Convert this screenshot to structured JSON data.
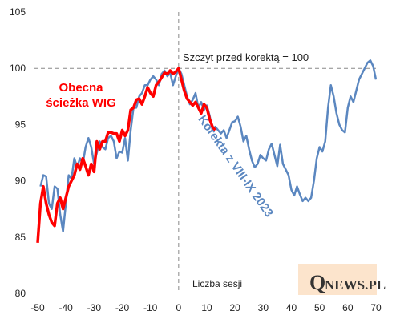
{
  "chart_data": {
    "type": "line",
    "annotation": "Szczyt przed korektą = 100",
    "xlabel": "Liczba sesji",
    "logo": [
      "Q",
      "NEWS.PL"
    ],
    "hline": 100,
    "vline": 0,
    "xlim": [
      -50,
      70
    ],
    "xticks": [
      -50,
      -40,
      -30,
      -20,
      -10,
      0,
      10,
      20,
      30,
      40,
      50,
      60,
      70
    ],
    "ylim": [
      80,
      105
    ],
    "yticks": [
      80,
      85,
      90,
      95,
      100,
      105
    ],
    "grid": false,
    "x": [
      -50,
      -49,
      -48,
      -47,
      -46,
      -45,
      -44,
      -43,
      -42,
      -41,
      -40,
      -39,
      -38,
      -37,
      -36,
      -35,
      -34,
      -33,
      -32,
      -31,
      -30,
      -29,
      -28,
      -27,
      -26,
      -25,
      -24,
      -23,
      -22,
      -21,
      -20,
      -19,
      -18,
      -17,
      -16,
      -15,
      -14,
      -13,
      -12,
      -11,
      -10,
      -9,
      -8,
      -7,
      -6,
      -5,
      -4,
      -3,
      -2,
      -1,
      0,
      1,
      2,
      3,
      4,
      5,
      6,
      7,
      8,
      9,
      10,
      11,
      12,
      13,
      14,
      15,
      16,
      17,
      18,
      19,
      20,
      21,
      22,
      23,
      24,
      25,
      26,
      27,
      28,
      29,
      30,
      31,
      32,
      33,
      34,
      35,
      36,
      37,
      38,
      39,
      40,
      41,
      42,
      43,
      44,
      45,
      46,
      47,
      48,
      49,
      50,
      51,
      52,
      53,
      54,
      55,
      56,
      57,
      58,
      59,
      60,
      61,
      62,
      63,
      64,
      65,
      66,
      67,
      68,
      69,
      70
    ],
    "series": [
      {
        "name": "Korekta z VIII-IX 2023",
        "color": "#5b87c0",
        "width": 2.5,
        "values": [
          null,
          89.5,
          90.5,
          90.4,
          88,
          87.5,
          89.5,
          89.3,
          87,
          85.5,
          88,
          90.5,
          90.2,
          92,
          91.2,
          92,
          91.5,
          93,
          93.8,
          93,
          91.5,
          92.5,
          93.5,
          93,
          92.8,
          93.8,
          94,
          93.5,
          92,
          92.6,
          92.5,
          93.8,
          91.8,
          94.5,
          96.5,
          96.5,
          97.5,
          97.8,
          98.5,
          98.5,
          99,
          99.3,
          99,
          98.5,
          99.5,
          99.8,
          99.3,
          99.6,
          98.5,
          99.3,
          100,
          99.5,
          98.5,
          97.5,
          96.8,
          97.2,
          97.8,
          96.5,
          97,
          96.3,
          96.7,
          95.8,
          94.5,
          94.8,
          94.5,
          94.2,
          94.5,
          93.8,
          94.5,
          95.2,
          95.3,
          95.7,
          94.8,
          93.5,
          94,
          92.8,
          91.8,
          91.2,
          91.5,
          92.3,
          92,
          91.8,
          92.8,
          93.3,
          92.3,
          91.3,
          93.2,
          91.5,
          91,
          90.5,
          89.2,
          88.7,
          89.5,
          88.8,
          88.2,
          88.5,
          88.2,
          88.5,
          90,
          92,
          93,
          92.6,
          93.5,
          96.5,
          98.5,
          97.5,
          96,
          95,
          94.5,
          94.3,
          96.5,
          97.5,
          97,
          98,
          99,
          99.5,
          100,
          100.5,
          100.7,
          100.2,
          99
        ]
      },
      {
        "name": "Obecna ścieżka WIG",
        "color": "#ff0000",
        "width": 3.5,
        "values": [
          84.5,
          88,
          89.5,
          88,
          87,
          86.3,
          86,
          88,
          88.5,
          87.5,
          88.5,
          89.5,
          90,
          90.5,
          91.5,
          91,
          92,
          91.3,
          90.5,
          91.5,
          90.8,
          93.5,
          92.8,
          93.5,
          93.5,
          94.3,
          94.3,
          94.2,
          94.2,
          93.5,
          94.5,
          94,
          94.5,
          96.3,
          96.5,
          97.2,
          97.3,
          96.8,
          97.5,
          98.3,
          97.8,
          97.5,
          98.5,
          98.8,
          99.2,
          99.6,
          99.5,
          99.8,
          99.5,
          99.7,
          100,
          99,
          98,
          97.3,
          97,
          96.7,
          97,
          96.5,
          96,
          96.8,
          96.5,
          95.5,
          94.8,
          94.5,
          null,
          null,
          null,
          null,
          null,
          null,
          null,
          null,
          null,
          null,
          null,
          null,
          null,
          null,
          null,
          null,
          null,
          null,
          null,
          null,
          null,
          null,
          null,
          null,
          null,
          null,
          null,
          null,
          null,
          null,
          null,
          null,
          null,
          null,
          null,
          null,
          null,
          null,
          null,
          null,
          null,
          null,
          null,
          null,
          null,
          null,
          null,
          null,
          null,
          null,
          null,
          null,
          null,
          null,
          null,
          null,
          null
        ]
      }
    ]
  }
}
